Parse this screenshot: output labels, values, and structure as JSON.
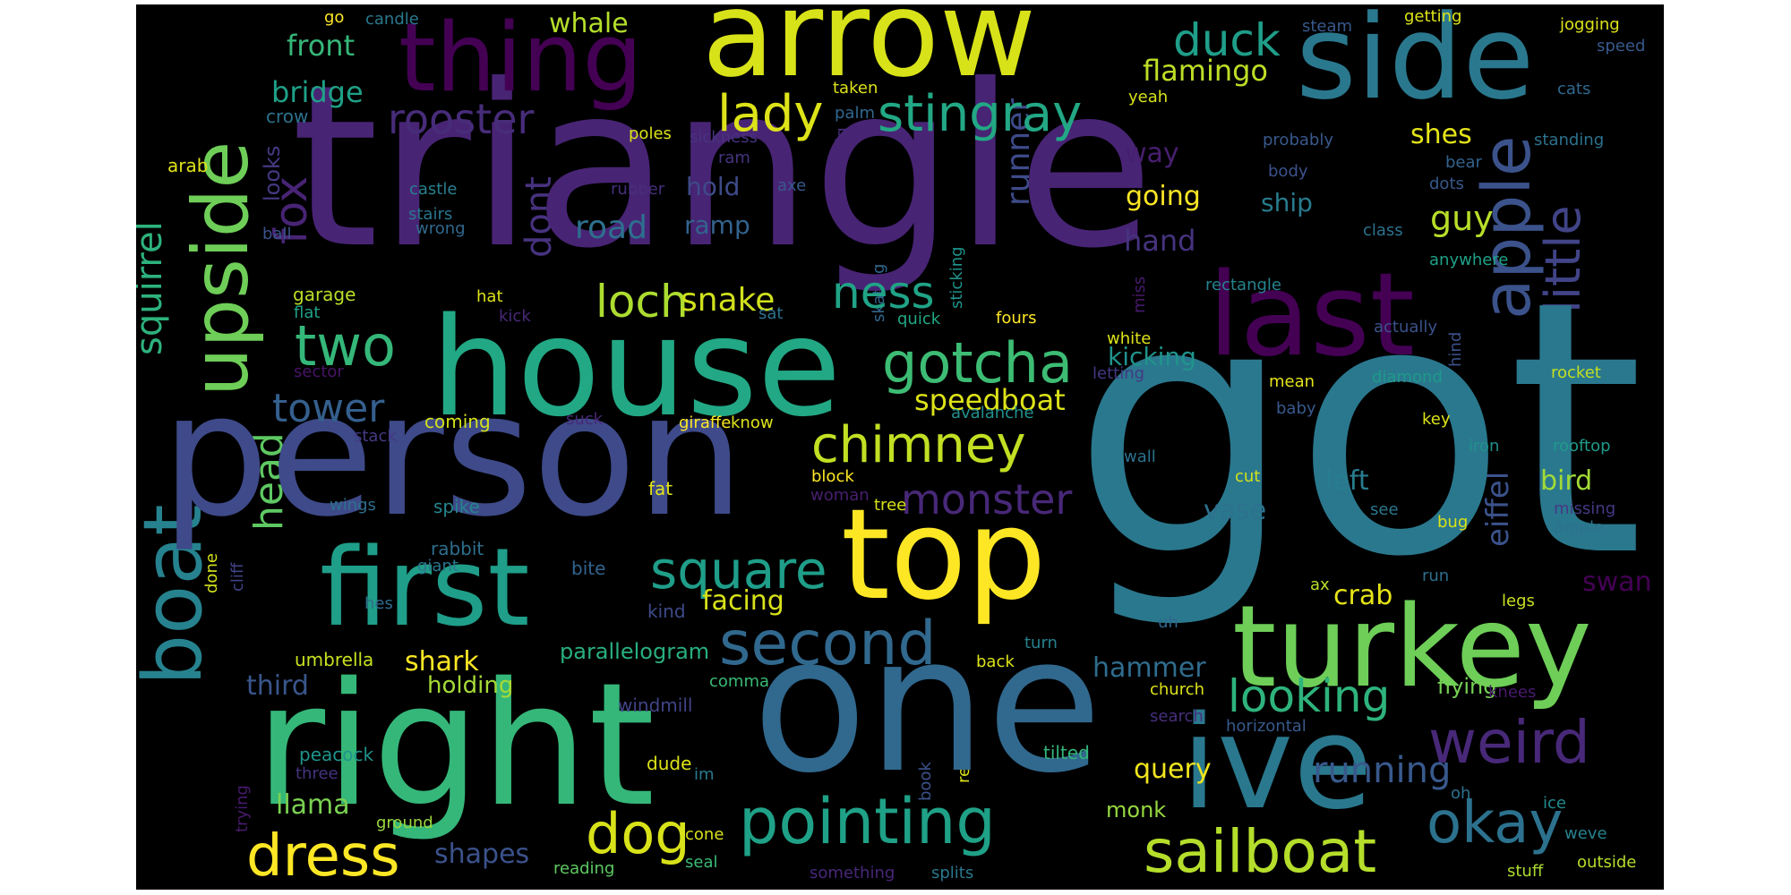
{
  "words": [
    {
      "text": "got",
      "color": "#2a788e"
    },
    {
      "text": "triangle",
      "color": "#482475"
    },
    {
      "text": "person",
      "color": "#3e4a89"
    },
    {
      "text": "one",
      "color": "#31688e"
    },
    {
      "text": "right",
      "color": "#35b779"
    },
    {
      "text": "house",
      "color": "#22a884"
    },
    {
      "text": "arrow",
      "color": "#d8e219"
    },
    {
      "text": "side",
      "color": "#2a788e"
    },
    {
      "text": "thing",
      "color": "#440154"
    },
    {
      "text": "upside",
      "color": "#6ece58"
    },
    {
      "text": "top",
      "color": "#fde725"
    },
    {
      "text": "first",
      "color": "#1f9e89"
    },
    {
      "text": "turkey",
      "color": "#6ece58"
    },
    {
      "text": "ive",
      "color": "#2a788e"
    },
    {
      "text": "last",
      "color": "#440154"
    },
    {
      "text": "boat",
      "color": "#26828e"
    },
    {
      "text": "second",
      "color": "#31688e"
    },
    {
      "text": "pointing",
      "color": "#1fa187"
    },
    {
      "text": "apple",
      "color": "#3b528b"
    },
    {
      "text": "little",
      "color": "#414487"
    },
    {
      "text": "weird",
      "color": "#482878"
    },
    {
      "text": "sailboat",
      "color": "#b5de2b"
    },
    {
      "text": "okay",
      "color": "#2c728e"
    },
    {
      "text": "two",
      "color": "#35b779"
    },
    {
      "text": "gotcha",
      "color": "#3dbc74"
    },
    {
      "text": "chimney",
      "color": "#c2df23"
    },
    {
      "text": "dress",
      "color": "#fde725"
    },
    {
      "text": "dog",
      "color": "#d8e219"
    },
    {
      "text": "square",
      "color": "#1f9e89"
    },
    {
      "text": "stingray",
      "color": "#22a884"
    },
    {
      "text": "lady",
      "color": "#dde318"
    },
    {
      "text": "duck",
      "color": "#1f9e89"
    },
    {
      "text": "rooster",
      "color": "#472c7a"
    },
    {
      "text": "fox",
      "color": "#482475"
    },
    {
      "text": "squirrel",
      "color": "#2db27d"
    },
    {
      "text": "tower",
      "color": "#355f8d"
    },
    {
      "text": "monster",
      "color": "#482878"
    },
    {
      "text": "loch",
      "color": "#addc30"
    },
    {
      "text": "ness",
      "color": "#20a386"
    },
    {
      "text": "looking",
      "color": "#2eb37c"
    },
    {
      "text": "running",
      "color": "#38598c"
    },
    {
      "text": "head",
      "color": "#5ec962"
    },
    {
      "text": "dont",
      "color": "#46327e"
    },
    {
      "text": "snake",
      "color": "#d0e11c"
    },
    {
      "text": "speedboat",
      "color": "#dde318"
    },
    {
      "text": "road",
      "color": "#2d708e"
    },
    {
      "text": "flamingo",
      "color": "#bddf26"
    },
    {
      "text": "front",
      "color": "#35b779"
    },
    {
      "text": "bridge",
      "color": "#1fa187"
    },
    {
      "text": "whale",
      "color": "#b5de2b"
    },
    {
      "text": "guy",
      "color": "#b8de29"
    },
    {
      "text": "shes",
      "color": "#e5e419"
    },
    {
      "text": "runner",
      "color": "#3e4a89"
    },
    {
      "text": "hand",
      "color": "#46337f"
    },
    {
      "text": "crab",
      "color": "#e7e419"
    },
    {
      "text": "left",
      "color": "#287d8e"
    },
    {
      "text": "vase",
      "color": "#2c728e"
    },
    {
      "text": "bird",
      "color": "#a2da37"
    },
    {
      "text": "eiffel",
      "color": "#3b528b"
    },
    {
      "text": "swan",
      "color": "#440154"
    },
    {
      "text": "hammer",
      "color": "#2f6c8e"
    },
    {
      "text": "query",
      "color": "#f1e51d"
    },
    {
      "text": "third",
      "color": "#39568c"
    },
    {
      "text": "shark",
      "color": "#fde725"
    },
    {
      "text": "parallelogram",
      "color": "#29af7f"
    },
    {
      "text": "facing",
      "color": "#d8e219"
    },
    {
      "text": "shapes",
      "color": "#3b528b"
    },
    {
      "text": "holding",
      "color": "#a5db36"
    },
    {
      "text": "llama",
      "color": "#7ad151"
    },
    {
      "text": "looks",
      "color": "#443983"
    },
    {
      "text": "ramp",
      "color": "#33638d"
    },
    {
      "text": "hold",
      "color": "#3e4a89"
    },
    {
      "text": "going",
      "color": "#fde725"
    },
    {
      "text": "ship",
      "color": "#287c8e"
    },
    {
      "text": "way",
      "color": "#481f70"
    },
    {
      "text": "kicking",
      "color": "#20938c"
    },
    {
      "text": "monk",
      "color": "#95d840"
    },
    {
      "text": "flying",
      "color": "#75d054"
    },
    {
      "text": "umbrella",
      "color": "#c8e020"
    },
    {
      "text": "windmill",
      "color": "#414487"
    },
    {
      "text": "comma",
      "color": "#3aba76"
    },
    {
      "text": "crow",
      "color": "#2c728e"
    },
    {
      "text": "castle",
      "color": "#27808e"
    },
    {
      "text": "stairs",
      "color": "#2a768e"
    },
    {
      "text": "wrong",
      "color": "#31688e"
    },
    {
      "text": "arab",
      "color": "#dde318"
    },
    {
      "text": "ball",
      "color": "#3b528b"
    },
    {
      "text": "garage",
      "color": "#bade28"
    },
    {
      "text": "flat",
      "color": "#1fa187"
    },
    {
      "text": "sector",
      "color": "#481467"
    },
    {
      "text": "coming",
      "color": "#d5e21a"
    },
    {
      "text": "stack",
      "color": "#443a83"
    },
    {
      "text": "wings",
      "color": "#2e6f8e"
    },
    {
      "text": "spike",
      "color": "#25858e"
    },
    {
      "text": "rabbit",
      "color": "#2e6e8e"
    },
    {
      "text": "giant",
      "color": "#2a778e"
    },
    {
      "text": "bite",
      "color": "#33638d"
    },
    {
      "text": "fat",
      "color": "#e2e418"
    },
    {
      "text": "done",
      "color": "#d2e21b"
    },
    {
      "text": "cliff",
      "color": "#414487"
    },
    {
      "text": "hes",
      "color": "#2f6c8e"
    },
    {
      "text": "kind",
      "color": "#3e4a89"
    },
    {
      "text": "peacock",
      "color": "#1f948c"
    },
    {
      "text": "three",
      "color": "#46337f"
    },
    {
      "text": "trying",
      "color": "#481a6c"
    },
    {
      "text": "ground",
      "color": "#9bd93c"
    },
    {
      "text": "reading",
      "color": "#5ec962"
    },
    {
      "text": "cone",
      "color": "#d8e219"
    },
    {
      "text": "seal",
      "color": "#3aba76"
    },
    {
      "text": "something",
      "color": "#482878"
    },
    {
      "text": "splits",
      "color": "#2a778e"
    },
    {
      "text": "im",
      "color": "#2a788e"
    },
    {
      "text": "book",
      "color": "#3b528b"
    },
    {
      "text": "remember",
      "color": "#dde318"
    },
    {
      "text": "tilted",
      "color": "#32b67a"
    },
    {
      "text": "search",
      "color": "#472f7d"
    },
    {
      "text": "church",
      "color": "#dde318"
    },
    {
      "text": "horizontal",
      "color": "#38598c"
    },
    {
      "text": "knees",
      "color": "#481a6c"
    },
    {
      "text": "oh",
      "color": "#2c728e"
    },
    {
      "text": "ice",
      "color": "#238a8d"
    },
    {
      "text": "weve",
      "color": "#26828e"
    },
    {
      "text": "stuff",
      "color": "#addc30"
    },
    {
      "text": "outside",
      "color": "#b5de2b"
    },
    {
      "text": "uh",
      "color": "#31688e"
    },
    {
      "text": "ax",
      "color": "#b8de29"
    },
    {
      "text": "run",
      "color": "#2e6e8e"
    },
    {
      "text": "legs",
      "color": "#c8e020"
    },
    {
      "text": "bug",
      "color": "#d8e219"
    },
    {
      "text": "see",
      "color": "#2a768e"
    },
    {
      "text": "cut",
      "color": "#d5e21a"
    },
    {
      "text": "wall",
      "color": "#2c728e"
    },
    {
      "text": "baby",
      "color": "#38598c"
    },
    {
      "text": "iron",
      "color": "#21918c"
    },
    {
      "text": "key",
      "color": "#dde318"
    },
    {
      "text": "rooftop",
      "color": "#1f9a8a"
    },
    {
      "text": "missing",
      "color": "#443983"
    },
    {
      "text": "ample",
      "color": "#2c728e"
    },
    {
      "text": "turn",
      "color": "#26828e"
    },
    {
      "text": "back",
      "color": "#dde318"
    },
    {
      "text": "block",
      "color": "#fde725"
    },
    {
      "text": "tree",
      "color": "#d8e219"
    },
    {
      "text": "woman",
      "color": "#481f70"
    },
    {
      "text": "giraffe",
      "color": "#fde725"
    },
    {
      "text": "know",
      "color": "#dde318"
    },
    {
      "text": "suck",
      "color": "#482878"
    },
    {
      "text": "avalanche",
      "color": "#21918c"
    },
    {
      "text": "mean",
      "color": "#e5e419"
    },
    {
      "text": "diamond",
      "color": "#1f9a8a"
    },
    {
      "text": "rocket",
      "color": "#c2df23"
    },
    {
      "text": "letting",
      "color": "#443983"
    },
    {
      "text": "white",
      "color": "#dde318"
    },
    {
      "text": "fours",
      "color": "#fde725"
    },
    {
      "text": "quick",
      "color": "#22a884"
    },
    {
      "text": "sat",
      "color": "#2c728e"
    },
    {
      "text": "hat",
      "color": "#dde318"
    },
    {
      "text": "kick",
      "color": "#482878"
    },
    {
      "text": "actually",
      "color": "#3b528b"
    },
    {
      "text": "hind",
      "color": "#3b528b"
    },
    {
      "text": "miss",
      "color": "#481a6c"
    },
    {
      "text": "rectangle",
      "color": "#26828e"
    },
    {
      "text": "sticking",
      "color": "#1f948c"
    },
    {
      "text": "skating",
      "color": "#31688e"
    },
    {
      "text": "anywhere",
      "color": "#1fa187"
    },
    {
      "text": "class",
      "color": "#2c728e"
    },
    {
      "text": "dots",
      "color": "#38598c"
    },
    {
      "text": "body",
      "color": "#3b528b"
    },
    {
      "text": "bear",
      "color": "#33638d"
    },
    {
      "text": "probably",
      "color": "#38598c"
    },
    {
      "text": "standing",
      "color": "#2c728e"
    },
    {
      "text": "cats",
      "color": "#31688e"
    },
    {
      "text": "speed",
      "color": "#38598c"
    },
    {
      "text": "jogging",
      "color": "#dde318"
    },
    {
      "text": "getting",
      "color": "#dde318"
    },
    {
      "text": "steam",
      "color": "#38598c"
    },
    {
      "text": "yeah",
      "color": "#d8e219"
    },
    {
      "text": "axe",
      "color": "#38598c"
    },
    {
      "text": "rubber",
      "color": "#472f7d"
    },
    {
      "text": "ram",
      "color": "#46337f"
    },
    {
      "text": "sickness",
      "color": "#46337f"
    },
    {
      "text": "poles",
      "color": "#dde318"
    },
    {
      "text": "big",
      "color": "#46337f"
    },
    {
      "text": "palm",
      "color": "#31688e"
    },
    {
      "text": "taken",
      "color": "#dde318"
    },
    {
      "text": "candle",
      "color": "#2a788e"
    },
    {
      "text": "go",
      "color": "#fde725"
    },
    {
      "text": "dude",
      "color": "#dde318"
    }
  ]
}
